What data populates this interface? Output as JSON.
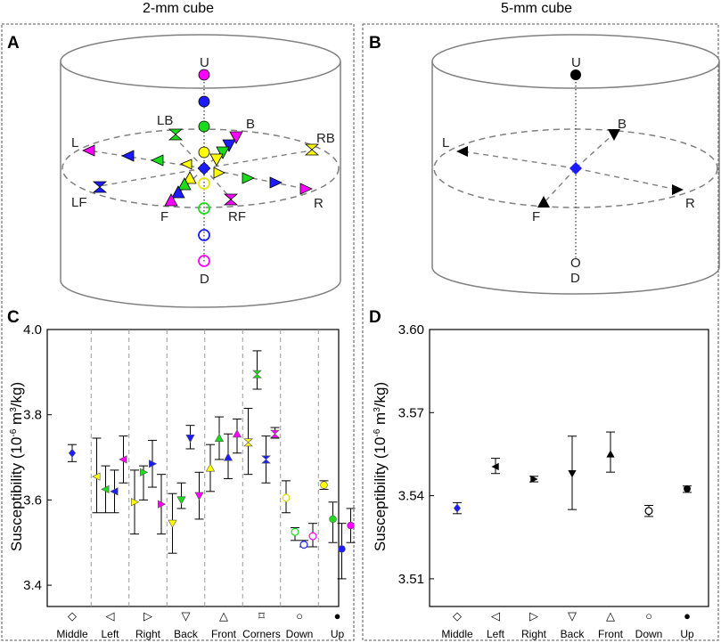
{
  "titles": {
    "left": "2-mm cube",
    "right": "5-mm cube"
  },
  "panel_letters": {
    "a": "A",
    "b": "B",
    "c": "C",
    "d": "D"
  },
  "colors": {
    "magenta": "#ff00ff",
    "blue": "#1c1cff",
    "green": "#1bdc1b",
    "yellow": "#ffff00",
    "black": "#000000",
    "cylinder": "#808080"
  },
  "diagram_a": {
    "labels": {
      "U": "U",
      "D": "D",
      "L": "L",
      "R": "R",
      "B": "B",
      "F": "F",
      "LB": "LB",
      "RB": "RB",
      "LF": "LF",
      "RF": "RF"
    }
  },
  "diagram_b": {
    "labels": {
      "U": "U",
      "O": "O",
      "D": "D",
      "L": "L",
      "R": "R",
      "B": "B",
      "F": "F"
    }
  },
  "chart_data": [
    {
      "panel": "C",
      "type": "scatter",
      "title": "",
      "ylabel_main": "Susceptibility (10",
      "ylabel_exp": "-6",
      "ylabel_mid": " m",
      "ylabel_exp2": "3",
      "ylabel_end": "/kg)",
      "ylim": [
        3.35,
        4.0
      ],
      "yticks": [
        "3.4",
        "3.6",
        "3.8",
        "4.0"
      ],
      "yticks_values": [
        3.4,
        3.6,
        3.8,
        4.0
      ],
      "grid": false,
      "groups": [
        {
          "name": "Middle",
          "symbol": "◇"
        },
        {
          "name": "Left",
          "symbol": "◁"
        },
        {
          "name": "Right",
          "symbol": "▷"
        },
        {
          "name": "Back",
          "symbol": "▽"
        },
        {
          "name": "Front",
          "symbol": "△"
        },
        {
          "name": "Corners",
          "symbol": "⌑"
        },
        {
          "name": "Down",
          "symbol": "○"
        },
        {
          "name": "Up",
          "symbol": "●"
        }
      ],
      "points": [
        {
          "group": 0,
          "shape": "diamond",
          "color": "blue",
          "value": 3.71,
          "low": 3.69,
          "high": 3.73
        },
        {
          "group": 1,
          "shape": "tri-left",
          "color": "yellow",
          "value": 3.655,
          "low": 3.57,
          "high": 3.745
        },
        {
          "group": 1,
          "shape": "tri-left",
          "color": "green",
          "value": 3.625,
          "low": 3.57,
          "high": 3.68
        },
        {
          "group": 1,
          "shape": "tri-left",
          "color": "blue",
          "value": 3.62,
          "low": 3.57,
          "high": 3.67
        },
        {
          "group": 1,
          "shape": "tri-left",
          "color": "magenta",
          "value": 3.695,
          "low": 3.64,
          "high": 3.75
        },
        {
          "group": 2,
          "shape": "tri-right",
          "color": "yellow",
          "value": 3.595,
          "low": 3.52,
          "high": 3.67
        },
        {
          "group": 2,
          "shape": "tri-right",
          "color": "green",
          "value": 3.665,
          "low": 3.6,
          "high": 3.68
        },
        {
          "group": 2,
          "shape": "tri-right",
          "color": "blue",
          "value": 3.685,
          "low": 3.63,
          "high": 3.74
        },
        {
          "group": 2,
          "shape": "tri-right",
          "color": "magenta",
          "value": 3.59,
          "low": 3.52,
          "high": 3.66
        },
        {
          "group": 3,
          "shape": "tri-down",
          "color": "yellow",
          "value": 3.545,
          "low": 3.475,
          "high": 3.615
        },
        {
          "group": 3,
          "shape": "tri-down",
          "color": "green",
          "value": 3.6,
          "low": 3.58,
          "high": 3.64
        },
        {
          "group": 3,
          "shape": "tri-down",
          "color": "blue",
          "value": 3.745,
          "low": 3.72,
          "high": 3.775
        },
        {
          "group": 3,
          "shape": "tri-down",
          "color": "magenta",
          "value": 3.61,
          "low": 3.555,
          "high": 3.665
        },
        {
          "group": 4,
          "shape": "tri-up",
          "color": "yellow",
          "value": 3.675,
          "low": 3.62,
          "high": 3.73
        },
        {
          "group": 4,
          "shape": "tri-up",
          "color": "green",
          "value": 3.745,
          "low": 3.695,
          "high": 3.795
        },
        {
          "group": 4,
          "shape": "tri-up",
          "color": "blue",
          "value": 3.7,
          "low": 3.65,
          "high": 3.755
        },
        {
          "group": 4,
          "shape": "tri-up",
          "color": "magenta",
          "value": 3.755,
          "low": 3.71,
          "high": 3.79
        },
        {
          "group": 5,
          "shape": "hourglass",
          "color": "yellow",
          "value": 3.735,
          "low": 3.66,
          "high": 3.815
        },
        {
          "group": 5,
          "shape": "hourglass",
          "color": "green",
          "value": 3.895,
          "low": 3.86,
          "high": 3.95
        },
        {
          "group": 5,
          "shape": "hourglass",
          "color": "blue",
          "value": 3.695,
          "low": 3.64,
          "high": 3.75
        },
        {
          "group": 5,
          "shape": "hourglass",
          "color": "magenta",
          "value": 3.755,
          "low": 3.745,
          "high": 3.77
        },
        {
          "group": 6,
          "shape": "circle-open",
          "color": "yellow",
          "value": 3.605,
          "low": 3.57,
          "high": 3.645
        },
        {
          "group": 6,
          "shape": "circle-open",
          "color": "green",
          "value": 3.525,
          "low": 3.505,
          "high": 3.535
        },
        {
          "group": 6,
          "shape": "circle-open",
          "color": "blue",
          "value": 3.495,
          "low": 3.49,
          "high": 3.505
        },
        {
          "group": 6,
          "shape": "circle-open",
          "color": "magenta",
          "value": 3.515,
          "low": 3.49,
          "high": 3.545
        },
        {
          "group": 7,
          "shape": "circle",
          "color": "yellow",
          "value": 3.635,
          "low": 3.625,
          "high": 3.645
        },
        {
          "group": 7,
          "shape": "circle",
          "color": "green",
          "value": 3.555,
          "low": 3.5,
          "high": 3.595
        },
        {
          "group": 7,
          "shape": "circle",
          "color": "blue",
          "value": 3.485,
          "low": 3.415,
          "high": 3.545
        },
        {
          "group": 7,
          "shape": "circle",
          "color": "magenta",
          "value": 3.54,
          "low": 3.5,
          "high": 3.58
        }
      ]
    },
    {
      "panel": "D",
      "type": "scatter",
      "title": "",
      "ylabel_main": "Susceptibility (10",
      "ylabel_exp": "-6",
      "ylabel_mid": " m",
      "ylabel_exp2": "3",
      "ylabel_end": "/kg)",
      "ylim": [
        3.5,
        3.6
      ],
      "yticks": [
        "3.51",
        "3.54",
        "3.57",
        "3.60"
      ],
      "yticks_values": [
        3.51,
        3.54,
        3.57,
        3.6
      ],
      "grid": false,
      "groups": [
        {
          "name": "Middle",
          "symbol": "◇"
        },
        {
          "name": "Left",
          "symbol": "◁"
        },
        {
          "name": "Right",
          "symbol": "▷"
        },
        {
          "name": "Back",
          "symbol": "▽"
        },
        {
          "name": "Front",
          "symbol": "△"
        },
        {
          "name": "Down",
          "symbol": "○"
        },
        {
          "name": "Up",
          "symbol": "●"
        }
      ],
      "points": [
        {
          "group": 0,
          "shape": "diamond",
          "color": "blue",
          "value": 3.5355,
          "low": 3.5335,
          "high": 3.5375
        },
        {
          "group": 1,
          "shape": "tri-left",
          "color": "black",
          "value": 3.5505,
          "low": 3.548,
          "high": 3.5535
        },
        {
          "group": 2,
          "shape": "tri-right",
          "color": "black",
          "value": 3.546,
          "low": 3.545,
          "high": 3.547
        },
        {
          "group": 3,
          "shape": "tri-down",
          "color": "black",
          "value": 3.548,
          "low": 3.535,
          "high": 3.5615
        },
        {
          "group": 4,
          "shape": "tri-up",
          "color": "black",
          "value": 3.555,
          "low": 3.5485,
          "high": 3.563
        },
        {
          "group": 5,
          "shape": "circle-open",
          "color": "black",
          "value": 3.5345,
          "low": 3.5325,
          "high": 3.5365
        },
        {
          "group": 6,
          "shape": "circle",
          "color": "black",
          "value": 3.5425,
          "low": 3.5412,
          "high": 3.5435
        }
      ]
    }
  ]
}
